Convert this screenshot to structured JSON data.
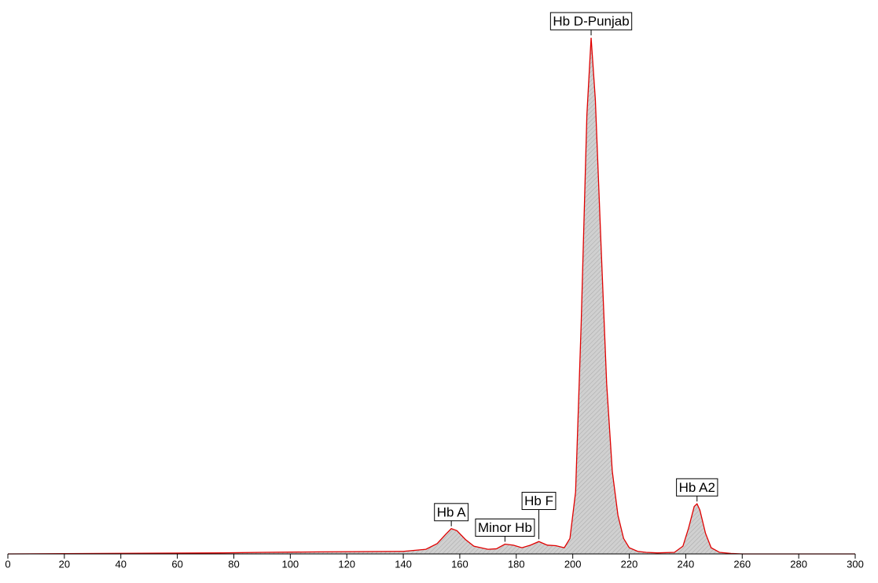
{
  "chart_data": {
    "type": "line",
    "x": [
      0,
      76,
      90,
      110,
      140,
      148,
      152,
      155,
      157,
      159,
      162,
      165,
      170,
      173,
      176,
      179,
      182,
      185,
      188,
      191,
      194,
      197,
      199,
      201,
      203,
      205,
      206.5,
      208,
      210,
      212,
      214,
      216,
      218,
      220,
      223,
      226,
      230,
      236,
      239,
      241,
      243,
      244,
      245,
      247,
      249,
      252,
      256,
      260,
      300
    ],
    "series": [
      {
        "color": "#e00000",
        "fill_color": "#c4c4c4",
        "values": [
          0,
          0.2,
          0.3,
          0.4,
          0.5,
          0.9,
          2,
          3.8,
          4.9,
          4.5,
          2.8,
          1.5,
          0.9,
          1,
          1.9,
          1.7,
          1.2,
          1.7,
          2.4,
          1.7,
          1.6,
          1.2,
          3,
          12,
          45,
          85,
          100,
          88,
          60,
          33,
          16,
          7.5,
          3,
          1.2,
          0.5,
          0.3,
          0.2,
          0.3,
          1.5,
          5,
          9.2,
          9.7,
          8.5,
          4,
          1.2,
          0.3,
          0.1,
          0,
          0
        ]
      }
    ],
    "xlim": [
      0,
      300
    ],
    "xticks": [
      0,
      20,
      40,
      60,
      80,
      100,
      120,
      140,
      160,
      180,
      200,
      220,
      240,
      260,
      280,
      300
    ],
    "ylim": [
      0,
      100
    ],
    "annotations": [
      {
        "text": "Hb A",
        "x": 157
      },
      {
        "text": "Minor Hb",
        "x": 176
      },
      {
        "text": "Hb F",
        "x": 188
      },
      {
        "text": "Hb D-Punjab",
        "x": 206.5
      },
      {
        "text": "Hb A2",
        "x": 244
      }
    ]
  }
}
